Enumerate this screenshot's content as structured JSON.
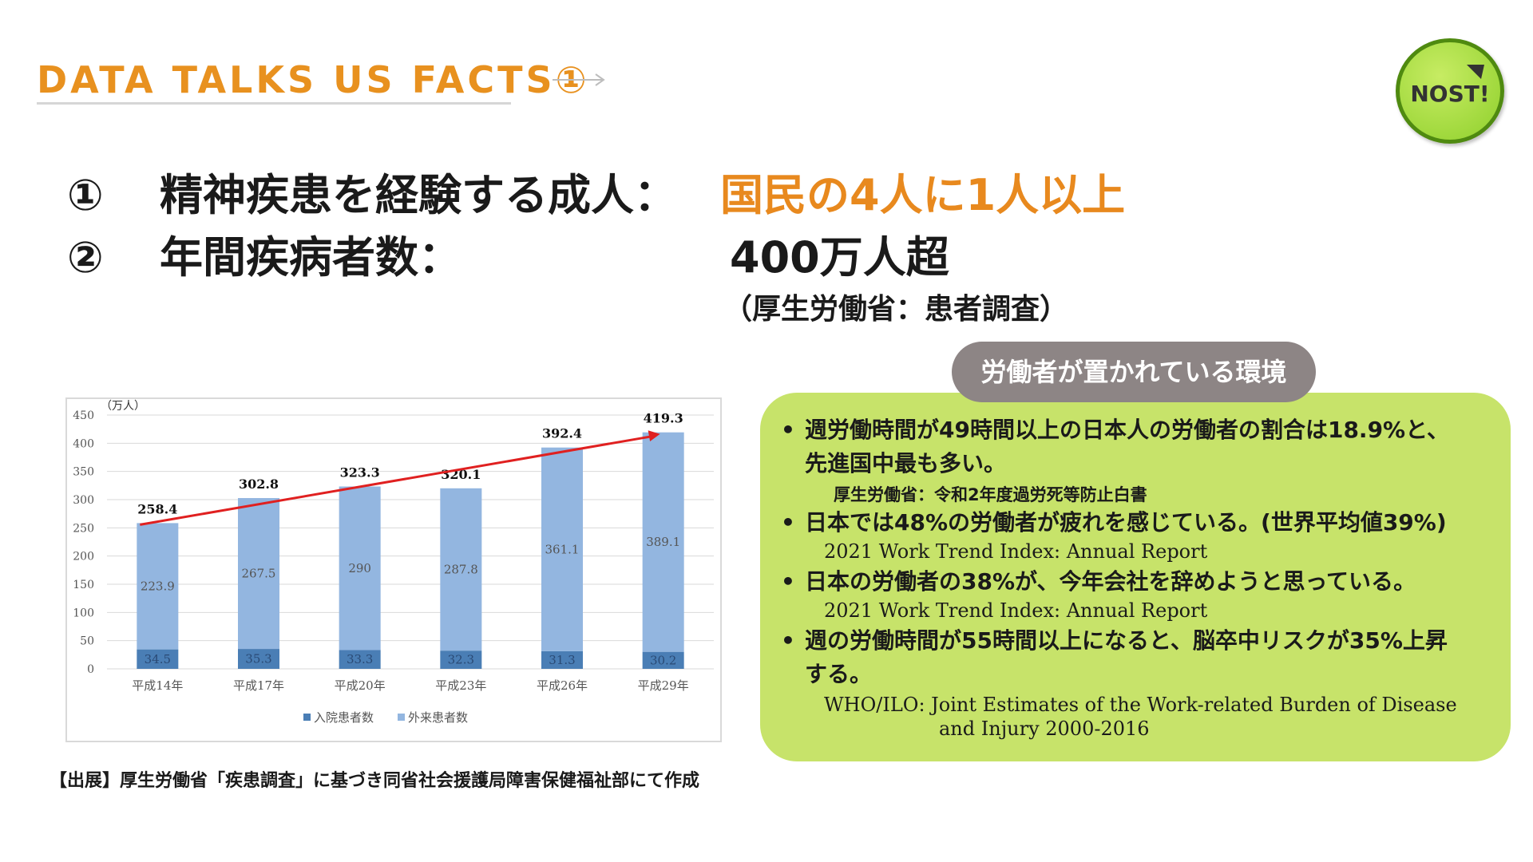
{
  "header": {
    "title": "DATA TALKS US FACTS①"
  },
  "logo": {
    "text": "NOST!"
  },
  "facts": {
    "item1": {
      "num": "①",
      "label": "精神疾患を経験する成人：",
      "value": "国民の4人に1人以上"
    },
    "item2": {
      "num": "②",
      "label": "年間疾病者数：",
      "value": "400万人超"
    },
    "source": "（厚生労働省：患者調査）"
  },
  "chart_data": {
    "type": "bar",
    "stacked": true,
    "unit_label": "（万人）",
    "categories": [
      "平成14年",
      "平成17年",
      "平成20年",
      "平成23年",
      "平成26年",
      "平成29年"
    ],
    "series": [
      {
        "name": "入院患者数",
        "values": [
          34.5,
          35.3,
          33.3,
          32.3,
          31.3,
          30.2
        ],
        "labels": [
          "34.5",
          "35.3",
          "33.3",
          "32.3",
          "31.3",
          "30.2"
        ],
        "color": "#4a7eb5"
      },
      {
        "name": "外来患者数",
        "values": [
          223.9,
          267.5,
          290,
          287.8,
          361.1,
          389.1
        ],
        "labels": [
          "223.9",
          "267.5",
          "290",
          "287.8",
          "361.1",
          "389.1"
        ],
        "color": "#93b6e0"
      }
    ],
    "totals": [
      258.4,
      302.8,
      323.3,
      320.1,
      392.4,
      419.3
    ],
    "total_labels": [
      "258.4",
      "302.8",
      "323.3",
      "320.1",
      "392.4",
      "419.3"
    ],
    "ylim": [
      0,
      450
    ],
    "yticks": [
      0,
      50,
      100,
      150,
      200,
      250,
      300,
      350,
      400,
      450
    ],
    "grid": true,
    "legend": "bottom",
    "trend_arrow": {
      "from_category": 0,
      "to_category": 5,
      "color": "#e02020"
    }
  },
  "bottom_source": "【出展】厚生労働省「疾患調査」に基づき同省社会援護局障害保健福祉部にて作成",
  "panel": {
    "title": "労働者が置かれている環境",
    "bullets": [
      {
        "text": "週労働時間が49時間以上の日本人の労働者の割合は18.9%と、",
        "cont": "先進国中最も多い。",
        "source": "厚生労働省：令和2年度過労死等防止白書"
      },
      {
        "text": "日本では48%の労働者が疲れを感じている。(世界平均値39%)",
        "source": "2021 Work Trend Index: Annual Report"
      },
      {
        "text": "日本の労働者の38%が、今年会社を辞めようと思っている。",
        "source": "2021 Work Trend Index: Annual Report"
      },
      {
        "text": "週の労働時間が55時間以上になると、脳卒中リスクが35%上昇",
        "cont": "する。",
        "source": "WHO/ILO: Joint Estimates of the Work-related Burden of Disease",
        "source2": "and Injury 2000-2016"
      }
    ]
  },
  "colors": {
    "accent_orange": "#e8911f",
    "panel_green": "#c7e36a",
    "pill_gray": "#8d8585",
    "trend_red": "#e02020"
  }
}
